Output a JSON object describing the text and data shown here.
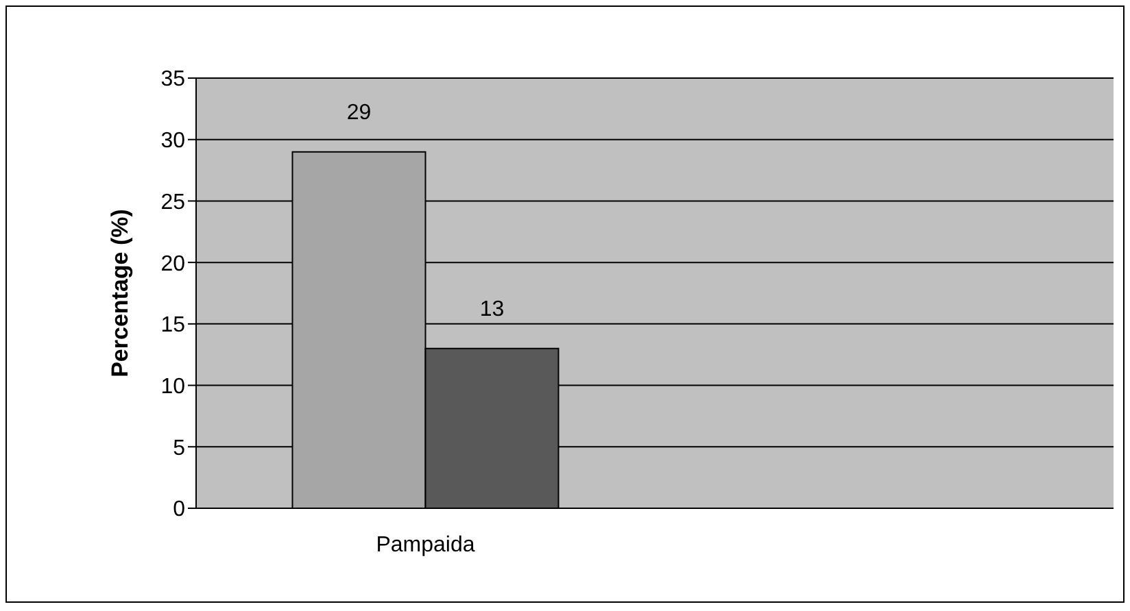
{
  "chart_data": {
    "type": "bar",
    "ylabel": "Percentage (%)",
    "categories": [
      "Pampaida",
      null
    ],
    "series": [
      {
        "color": "#a6a6a6",
        "values": [
          29,
          null
        ]
      },
      {
        "color": "#595959",
        "values": [
          13,
          null
        ]
      }
    ],
    "ylim": [
      0,
      35
    ],
    "yticks": [
      0,
      5,
      10,
      15,
      20,
      25,
      30,
      35
    ],
    "grid": "y",
    "data_labels": true
  }
}
